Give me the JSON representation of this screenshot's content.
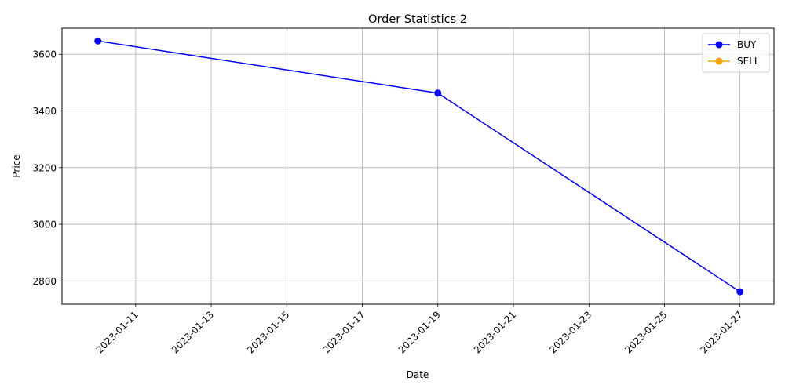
{
  "chart_data": {
    "type": "line",
    "title": "Order Statistics 2",
    "xlabel": "Date",
    "ylabel": "Price",
    "x_ticks": [
      "2023-01-11",
      "2023-01-13",
      "2023-01-15",
      "2023-01-17",
      "2023-01-19",
      "2023-01-21",
      "2023-01-23",
      "2023-01-25",
      "2023-01-27"
    ],
    "y_ticks": [
      2800,
      3000,
      3200,
      3400,
      3600
    ],
    "xlim": [
      "2023-01-09",
      "2023-01-28"
    ],
    "ylim": [
      2718,
      3692
    ],
    "grid": true,
    "legend_position": "top-right",
    "series": [
      {
        "name": "BUY",
        "color": "#0000ff",
        "marker": "circle",
        "points": [
          {
            "x": "2023-01-10",
            "y": 3647
          },
          {
            "x": "2023-01-19",
            "y": 3463
          },
          {
            "x": "2023-01-27",
            "y": 2762
          }
        ]
      },
      {
        "name": "SELL",
        "color": "#ffa500",
        "marker": "circle",
        "points": []
      }
    ]
  }
}
